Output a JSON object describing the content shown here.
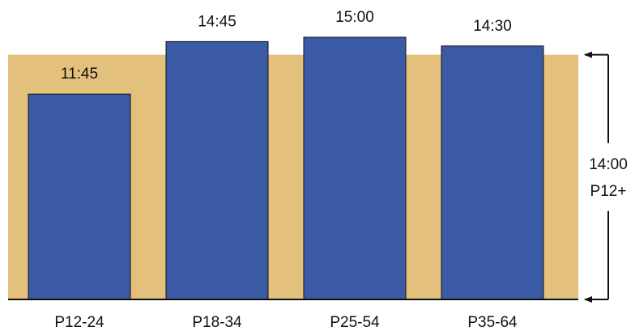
{
  "chart_data": {
    "type": "bar",
    "title": "",
    "xlabel": "",
    "ylabel": "",
    "categories": [
      "P12-24",
      "P18-34",
      "P25-54",
      "P35-64"
    ],
    "values_minutes": [
      705,
      885,
      900,
      870
    ],
    "data_labels": [
      "11:45",
      "14:45",
      "15:00",
      "14:30"
    ],
    "ylim_minutes": [
      0,
      900
    ],
    "reference": {
      "value_minutes": 840,
      "label_value": "14:00",
      "label_group": "P12+",
      "color": "#e4c07d"
    },
    "bar_color": "#3b5aa6",
    "bar_edge_color": "#111111",
    "grid": false,
    "legend": false
  }
}
